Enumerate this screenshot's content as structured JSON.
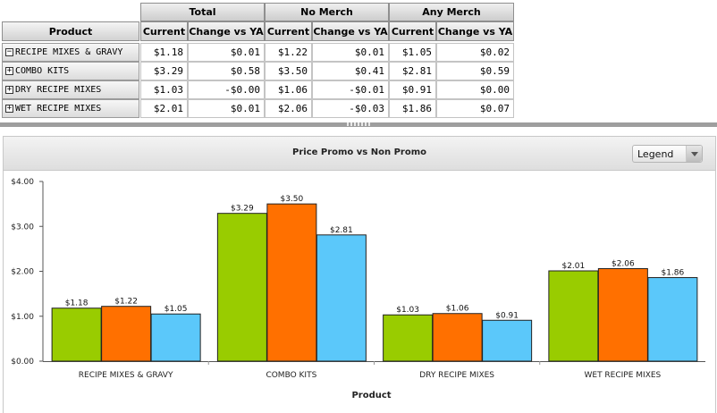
{
  "table": {
    "row_header": "Product",
    "groups": [
      {
        "label": "Total"
      },
      {
        "label": "No Merch"
      },
      {
        "label": "Any Merch"
      }
    ],
    "subheaders": [
      "Current",
      "Change vs YA",
      "Current",
      "Change vs YA",
      "Current",
      "Change vs YA"
    ],
    "rows": [
      {
        "expander": "−",
        "label": "RECIPE MIXES & GRAVY",
        "values": [
          "$1.18",
          "$0.01",
          "$1.22",
          "$0.01",
          "$1.05",
          "$0.02"
        ]
      },
      {
        "expander": "+",
        "label": "COMBO KITS",
        "values": [
          "$3.29",
          "$0.58",
          "$3.50",
          "$0.41",
          "$2.81",
          "$0.59"
        ]
      },
      {
        "expander": "+",
        "label": "DRY RECIPE MIXES",
        "values": [
          "$1.03",
          "-$0.00",
          "$1.06",
          "-$0.01",
          "$0.91",
          "$0.00"
        ]
      },
      {
        "expander": "+",
        "label": "WET RECIPE MIXES",
        "values": [
          "$2.01",
          "$0.01",
          "$2.06",
          "-$0.03",
          "$1.86",
          "$0.07"
        ]
      }
    ]
  },
  "chart_panel": {
    "title": "Price Promo vs Non Promo",
    "legend_button": "Legend"
  },
  "chart_data": {
    "type": "bar",
    "title": "Price Promo vs Non Promo",
    "xlabel": "Product",
    "ylabel": "",
    "categories": [
      "RECIPE MIXES & GRAVY",
      "COMBO KITS",
      "DRY RECIPE MIXES",
      "WET RECIPE MIXES"
    ],
    "series": [
      {
        "values": [
          1.18,
          3.29,
          1.03,
          2.01
        ],
        "color": "#99cc00"
      },
      {
        "values": [
          1.22,
          3.5,
          1.06,
          2.06
        ],
        "color": "#ff7000"
      },
      {
        "values": [
          1.05,
          2.81,
          0.91,
          1.86
        ],
        "color": "#5bc8fa"
      }
    ],
    "data_labels": [
      [
        "$1.18",
        "$3.29",
        "$1.03",
        "$2.01"
      ],
      [
        "$1.22",
        "$3.50",
        "$1.06",
        "$2.06"
      ],
      [
        "$1.05",
        "$2.81",
        "$0.91",
        "$1.86"
      ]
    ],
    "yticks": [
      0,
      1,
      2,
      3,
      4
    ],
    "ytick_labels": [
      "$0.00",
      "$1.00",
      "$2.00",
      "$3.00",
      "$4.00"
    ],
    "ylim": [
      0,
      4
    ],
    "grid": false,
    "legend": "hidden"
  }
}
